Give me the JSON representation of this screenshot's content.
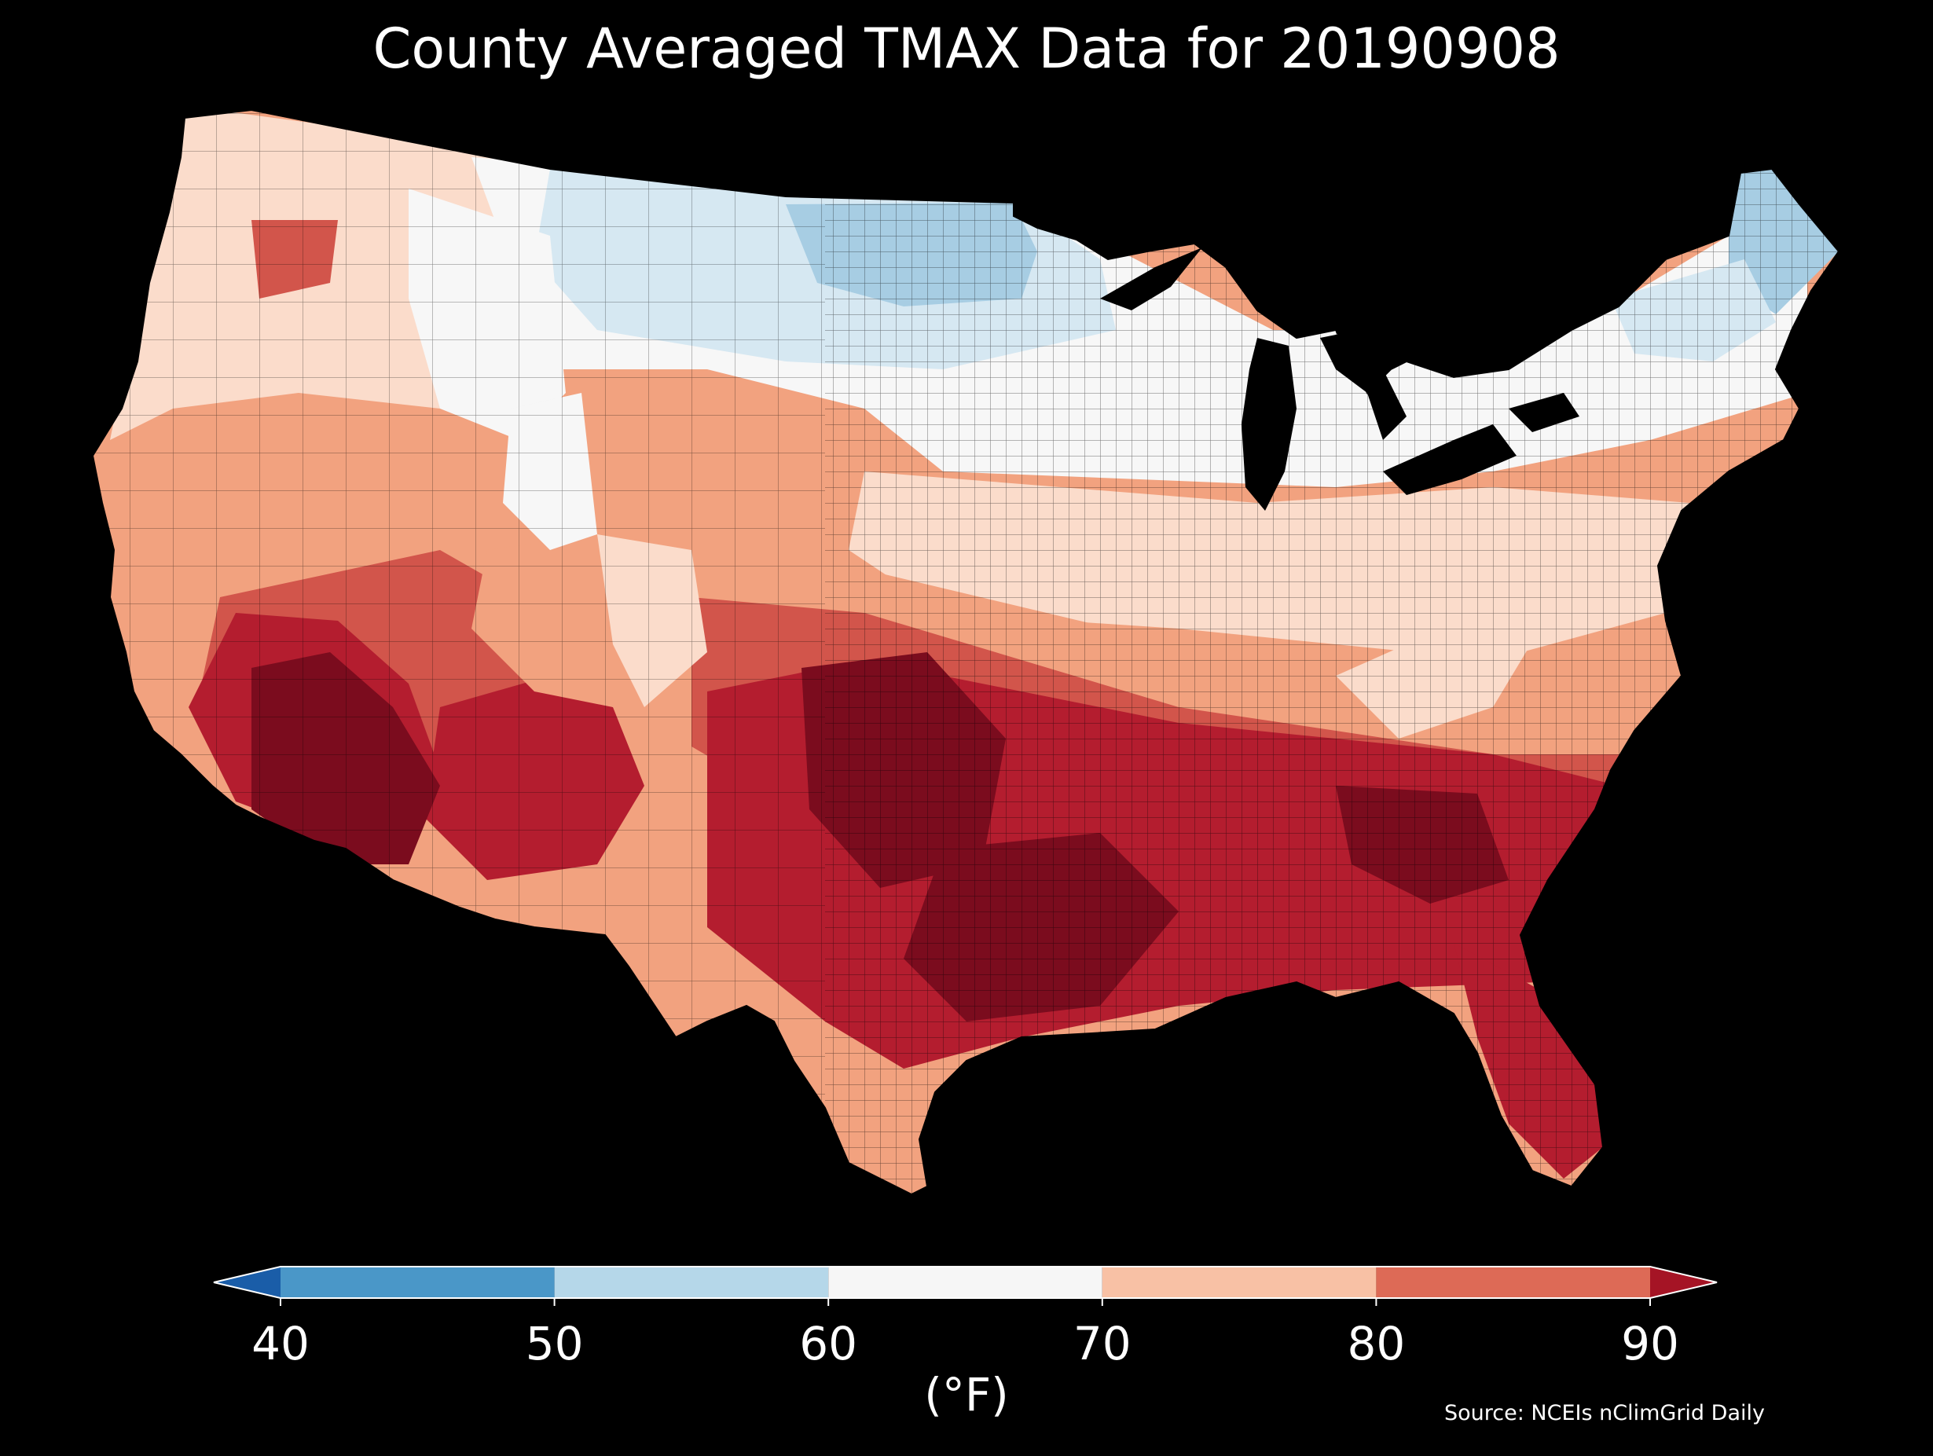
{
  "title": "County Averaged TMAX Data for 20190908",
  "source": "Source: NCEIs nClimGrid Daily",
  "colorbar": {
    "unit": "(°F)",
    "ticks": [
      "40",
      "50",
      "60",
      "70",
      "80",
      "90"
    ],
    "bins": [
      {
        "range": "<40",
        "color": "#1a5da8"
      },
      {
        "range": "40-50",
        "color": "#4a97c8"
      },
      {
        "range": "50-60",
        "color": "#b5d7e9"
      },
      {
        "range": "60-70",
        "color": "#f6f6f6"
      },
      {
        "range": "70-80",
        "color": "#f8c1a5"
      },
      {
        "range": "80-90",
        "color": "#dd6a56"
      },
      {
        "range": ">90",
        "color": "#a51425"
      }
    ]
  },
  "map": {
    "colors": {
      "cool": "#a7cde3",
      "light_cool": "#d6e8f2",
      "neutral": "#f7f7f7",
      "warm_light": "#fbdccb",
      "warm": "#f2a27f",
      "hot": "#d2554b",
      "very_hot": "#b41d2f",
      "extreme": "#7b0c1e",
      "county_line": "#000000"
    }
  }
}
